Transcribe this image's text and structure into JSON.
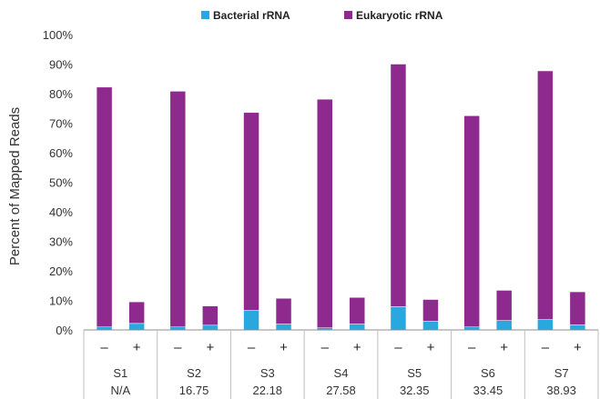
{
  "chart_data": {
    "type": "bar",
    "stacked": true,
    "title": "",
    "xlabel": "",
    "ylabel": "Percent of Mapped Reads",
    "ylim": [
      0,
      100
    ],
    "yticks": [
      "0%",
      "10%",
      "20%",
      "30%",
      "40%",
      "50%",
      "60%",
      "70%",
      "80%",
      "90%",
      "100%"
    ],
    "legend_position": "top",
    "grid": false,
    "categories": [
      "S1 −",
      "S1 +",
      "S2 −",
      "S2 +",
      "S3 −",
      "S3 +",
      "S4 −",
      "S4 +",
      "S5 −",
      "S5 +",
      "S6 −",
      "S6 +",
      "S7 −",
      "S7 +"
    ],
    "conditions": [
      "–",
      "+"
    ],
    "groups": [
      {
        "name": "S1",
        "value": "N/A"
      },
      {
        "name": "S2",
        "value": "16.75"
      },
      {
        "name": "S3",
        "value": "22.18"
      },
      {
        "name": "S4",
        "value": "27.58"
      },
      {
        "name": "S5",
        "value": "32.35"
      },
      {
        "name": "S6",
        "value": "33.45"
      },
      {
        "name": "S7",
        "value": "38.93"
      }
    ],
    "series": [
      {
        "name": "Bacterial rRNA",
        "color": "#29a8e0",
        "values": [
          1.0,
          2.2,
          1.0,
          1.6,
          6.6,
          2.0,
          0.7,
          2.0,
          7.9,
          3.0,
          1.0,
          3.2,
          3.5,
          1.7
        ]
      },
      {
        "name": "Eukaryotic rRNA",
        "color": "#8e2a8e",
        "values": [
          81.2,
          7.3,
          79.8,
          6.5,
          67.0,
          8.7,
          77.4,
          9.0,
          82.1,
          7.3,
          71.5,
          10.2,
          84.2,
          11.2
        ]
      }
    ]
  }
}
